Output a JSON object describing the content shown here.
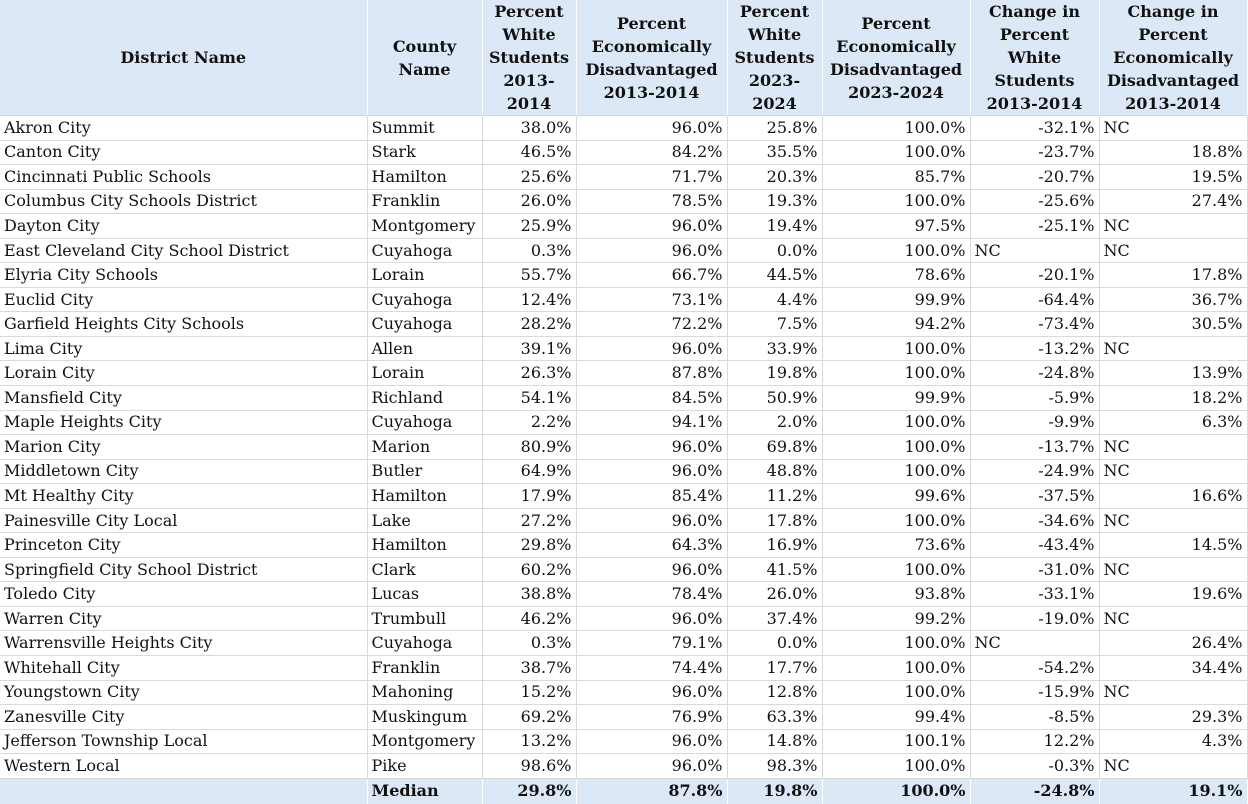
{
  "headers": [
    "District Name",
    "County Name",
    "Percent White Students 2013-2014",
    "Percent Economically Disadvantaged 2013-2014",
    "Percent White Students 2023-2024",
    "Percent Economically Disadvantaged 2023-2024",
    "Change in Percent White Students 2013-2014",
    "Change in Percent Economically Disadvantaged 2013-2014"
  ],
  "rows": [
    [
      "Akron City",
      "Summit",
      "38.0%",
      "96.0%",
      "25.8%",
      "100.0%",
      "-32.1%",
      "NC"
    ],
    [
      "Canton City",
      "Stark",
      "46.5%",
      "84.2%",
      "35.5%",
      "100.0%",
      "-23.7%",
      "18.8%"
    ],
    [
      "Cincinnati Public Schools",
      "Hamilton",
      "25.6%",
      "71.7%",
      "20.3%",
      "85.7%",
      "-20.7%",
      "19.5%"
    ],
    [
      "Columbus City Schools District",
      "Franklin",
      "26.0%",
      "78.5%",
      "19.3%",
      "100.0%",
      "-25.6%",
      "27.4%"
    ],
    [
      "Dayton City",
      "Montgomery",
      "25.9%",
      "96.0%",
      "19.4%",
      "97.5%",
      "-25.1%",
      "NC"
    ],
    [
      "East Cleveland City School District",
      "Cuyahoga",
      "0.3%",
      "96.0%",
      "0.0%",
      "100.0%",
      "NC",
      "NC"
    ],
    [
      "Elyria City Schools",
      "Lorain",
      "55.7%",
      "66.7%",
      "44.5%",
      "78.6%",
      "-20.1%",
      "17.8%"
    ],
    [
      "Euclid City",
      "Cuyahoga",
      "12.4%",
      "73.1%",
      "4.4%",
      "99.9%",
      "-64.4%",
      "36.7%"
    ],
    [
      "Garfield Heights City Schools",
      "Cuyahoga",
      "28.2%",
      "72.2%",
      "7.5%",
      "94.2%",
      "-73.4%",
      "30.5%"
    ],
    [
      "Lima City",
      "Allen",
      "39.1%",
      "96.0%",
      "33.9%",
      "100.0%",
      "-13.2%",
      "NC"
    ],
    [
      "Lorain City",
      "Lorain",
      "26.3%",
      "87.8%",
      "19.8%",
      "100.0%",
      "-24.8%",
      "13.9%"
    ],
    [
      "Mansfield City",
      "Richland",
      "54.1%",
      "84.5%",
      "50.9%",
      "99.9%",
      "-5.9%",
      "18.2%"
    ],
    [
      "Maple Heights City",
      "Cuyahoga",
      "2.2%",
      "94.1%",
      "2.0%",
      "100.0%",
      "-9.9%",
      "6.3%"
    ],
    [
      "Marion City",
      "Marion",
      "80.9%",
      "96.0%",
      "69.8%",
      "100.0%",
      "-13.7%",
      "NC"
    ],
    [
      "Middletown City",
      "Butler",
      "64.9%",
      "96.0%",
      "48.8%",
      "100.0%",
      "-24.9%",
      "NC"
    ],
    [
      "Mt Healthy City",
      "Hamilton",
      "17.9%",
      "85.4%",
      "11.2%",
      "99.6%",
      "-37.5%",
      "16.6%"
    ],
    [
      "Painesville City Local",
      "Lake",
      "27.2%",
      "96.0%",
      "17.8%",
      "100.0%",
      "-34.6%",
      "NC"
    ],
    [
      "Princeton City",
      "Hamilton",
      "29.8%",
      "64.3%",
      "16.9%",
      "73.6%",
      "-43.4%",
      "14.5%"
    ],
    [
      "Springfield City School District",
      "Clark",
      "60.2%",
      "96.0%",
      "41.5%",
      "100.0%",
      "-31.0%",
      "NC"
    ],
    [
      "Toledo City",
      "Lucas",
      "38.8%",
      "78.4%",
      "26.0%",
      "93.8%",
      "-33.1%",
      "19.6%"
    ],
    [
      "Warren City",
      "Trumbull",
      "46.2%",
      "96.0%",
      "37.4%",
      "99.2%",
      "-19.0%",
      "NC"
    ],
    [
      "Warrensville Heights City",
      "Cuyahoga",
      "0.3%",
      "79.1%",
      "0.0%",
      "100.0%",
      "NC",
      "26.4%"
    ],
    [
      "Whitehall City",
      "Franklin",
      "38.7%",
      "74.4%",
      "17.7%",
      "100.0%",
      "-54.2%",
      "34.4%"
    ],
    [
      "Youngstown City",
      "Mahoning",
      "15.2%",
      "96.0%",
      "12.8%",
      "100.0%",
      "-15.9%",
      "NC"
    ],
    [
      "Zanesville City",
      "Muskingum",
      "69.2%",
      "76.9%",
      "63.3%",
      "99.4%",
      "-8.5%",
      "29.3%"
    ],
    [
      "Jefferson Township Local",
      "Montgomery",
      "13.2%",
      "96.0%",
      "14.8%",
      "100.1%",
      "12.2%",
      "4.3%"
    ],
    [
      "Western Local",
      "Pike",
      "98.6%",
      "96.0%",
      "98.3%",
      "100.0%",
      "-0.3%",
      "NC"
    ]
  ],
  "median": {
    "label": "Median",
    "values": [
      "29.8%",
      "87.8%",
      "19.8%",
      "100.0%",
      "-24.8%",
      "19.1%"
    ]
  },
  "colors": {
    "header_bg": "#dde8f7",
    "grid": "#d9d9d9"
  }
}
